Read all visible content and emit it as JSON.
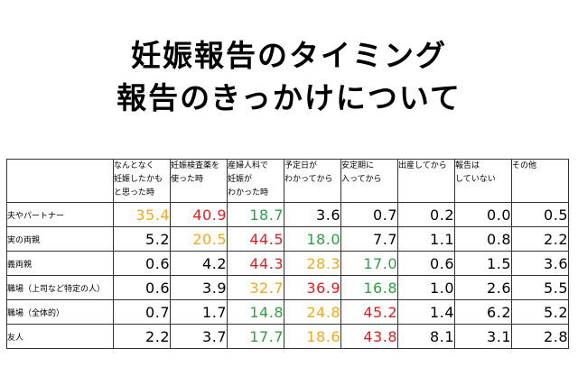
{
  "title": {
    "line1": "妊娠報告のタイミング",
    "line2": "報告のきっかけについて"
  },
  "table": {
    "columns": [
      [
        "なんとなく",
        "妊娠したかも",
        "と思った時"
      ],
      [
        "妊娠検査薬を",
        "使った時"
      ],
      [
        "産婦人科で",
        "妊娠が",
        "わかった時"
      ],
      [
        "予定日が",
        "わかってから"
      ],
      [
        "安定期に",
        "入ってから"
      ],
      [
        "出産してから"
      ],
      [
        "報告は",
        "していない"
      ],
      [
        "その他"
      ]
    ],
    "rows": [
      {
        "label": "夫やパートナー",
        "cells": [
          {
            "v": "35.4",
            "c": "orange"
          },
          {
            "v": "40.9",
            "c": "red"
          },
          {
            "v": "18.7",
            "c": "green"
          },
          {
            "v": "3.6",
            "c": "black"
          },
          {
            "v": "0.7",
            "c": "black"
          },
          {
            "v": "0.2",
            "c": "black"
          },
          {
            "v": "0.0",
            "c": "black"
          },
          {
            "v": "0.5",
            "c": "black"
          }
        ]
      },
      {
        "label": "実の両親",
        "cells": [
          {
            "v": "5.2",
            "c": "black"
          },
          {
            "v": "20.5",
            "c": "orange"
          },
          {
            "v": "44.5",
            "c": "red"
          },
          {
            "v": "18.0",
            "c": "green"
          },
          {
            "v": "7.7",
            "c": "black"
          },
          {
            "v": "1.1",
            "c": "black"
          },
          {
            "v": "0.8",
            "c": "black"
          },
          {
            "v": "2.2",
            "c": "black"
          }
        ]
      },
      {
        "label": "義両親",
        "cells": [
          {
            "v": "0.6",
            "c": "black"
          },
          {
            "v": "4.2",
            "c": "black"
          },
          {
            "v": "44.3",
            "c": "red"
          },
          {
            "v": "28.3",
            "c": "orange"
          },
          {
            "v": "17.0",
            "c": "green"
          },
          {
            "v": "0.6",
            "c": "black"
          },
          {
            "v": "1.5",
            "c": "black"
          },
          {
            "v": "3.6",
            "c": "black"
          }
        ]
      },
      {
        "label": "職場（上司など特定の人）",
        "cells": [
          {
            "v": "0.6",
            "c": "black"
          },
          {
            "v": "3.9",
            "c": "black"
          },
          {
            "v": "32.7",
            "c": "orange"
          },
          {
            "v": "36.9",
            "c": "red"
          },
          {
            "v": "16.8",
            "c": "green"
          },
          {
            "v": "1.0",
            "c": "black"
          },
          {
            "v": "2.6",
            "c": "black"
          },
          {
            "v": "5.5",
            "c": "black"
          }
        ]
      },
      {
        "label": "職場（全体的）",
        "cells": [
          {
            "v": "0.7",
            "c": "black"
          },
          {
            "v": "1.7",
            "c": "black"
          },
          {
            "v": "14.8",
            "c": "green"
          },
          {
            "v": "24.8",
            "c": "orange"
          },
          {
            "v": "45.2",
            "c": "red"
          },
          {
            "v": "1.4",
            "c": "black"
          },
          {
            "v": "6.2",
            "c": "black"
          },
          {
            "v": "5.2",
            "c": "black"
          }
        ]
      },
      {
        "label": "友人",
        "cells": [
          {
            "v": "2.2",
            "c": "black"
          },
          {
            "v": "3.7",
            "c": "black"
          },
          {
            "v": "17.7",
            "c": "green"
          },
          {
            "v": "18.6",
            "c": "orange"
          },
          {
            "v": "43.8",
            "c": "red"
          },
          {
            "v": "8.1",
            "c": "black"
          },
          {
            "v": "3.1",
            "c": "black"
          },
          {
            "v": "2.8",
            "c": "black"
          }
        ]
      }
    ]
  },
  "colors": {
    "orange": "#f2a81c",
    "red": "#e21f1f",
    "green": "#2ea042",
    "black": "#000000"
  }
}
